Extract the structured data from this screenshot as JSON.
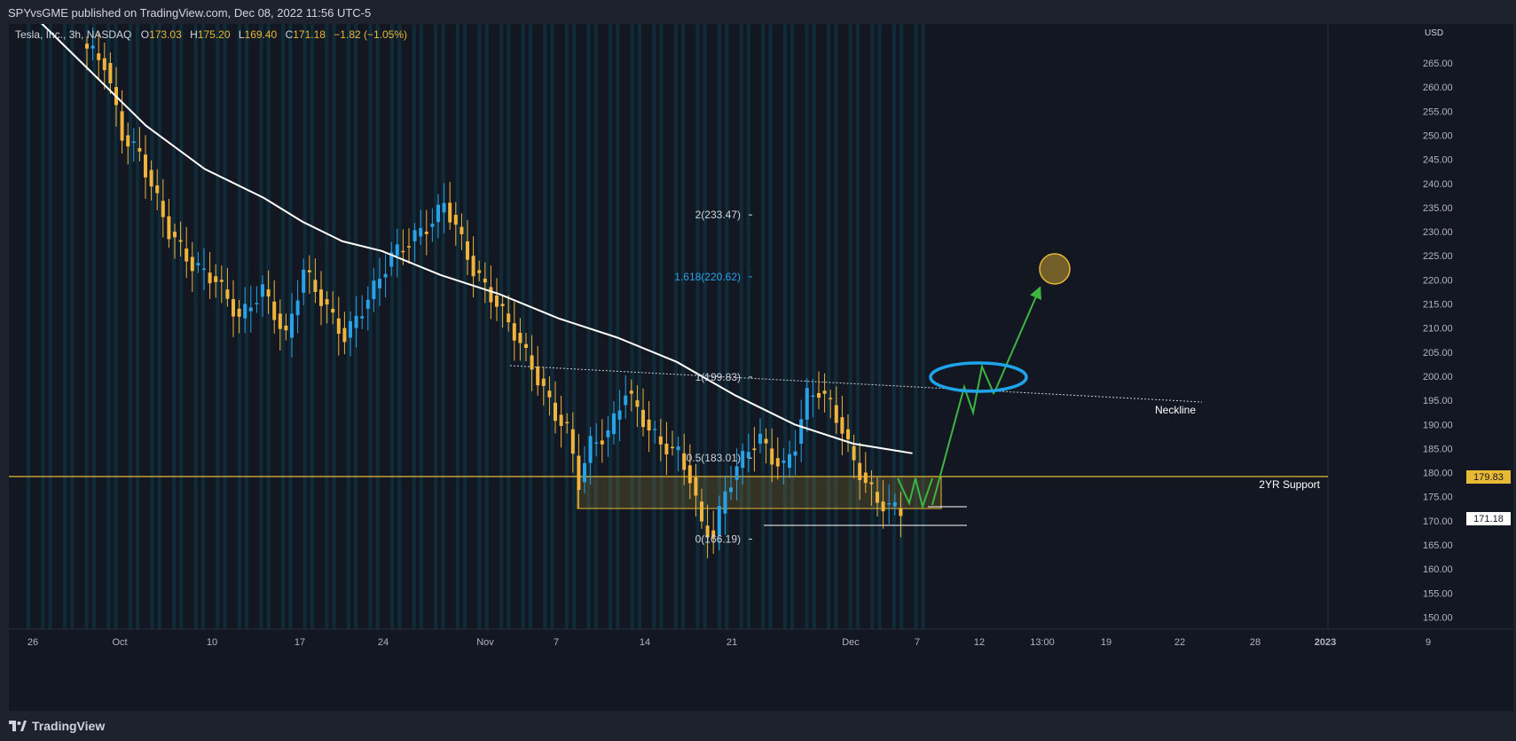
{
  "header": {
    "publish_line": "SPYvsGME published on TradingView.com, Dec 08, 2022 11:56 UTC-5"
  },
  "legend": {
    "symbol": "Tesla, Inc., 3h, NASDAQ",
    "o_label": "O",
    "o_value": "173.03",
    "h_label": "H",
    "h_value": "175.20",
    "l_label": "L",
    "l_value": "169.40",
    "c_label": "C",
    "c_value": "171.18",
    "change": "−1.82 (−1.05%)"
  },
  "footer": {
    "brand": "TradingView"
  },
  "colors": {
    "background": "#131722",
    "up": "#29a1e6",
    "down": "#f0b43c",
    "support": "#e8b935",
    "ma": "#ffffff",
    "projection": "#3cb543",
    "ellipse": "#1ea4e9",
    "fib_ext": "#2b9fe6"
  },
  "chart_data": {
    "type": "candlestick",
    "currency_label": "USD",
    "price_ticks": [
      "265.00",
      "260.00",
      "255.00",
      "250.00",
      "245.00",
      "240.00",
      "235.00",
      "230.00",
      "225.00",
      "220.00",
      "215.00",
      "210.00",
      "205.00",
      "200.00",
      "195.00",
      "190.00",
      "185.00",
      "180.00",
      "175.00",
      "170.00",
      "165.00",
      "160.00",
      "155.00",
      "150.00"
    ],
    "date_ticks": [
      "26",
      "Oct",
      "10",
      "17",
      "24",
      "Nov",
      "7",
      "14",
      "21",
      "Dec",
      "7",
      "12",
      "13:00",
      "19",
      "22",
      "28",
      "2023",
      "9"
    ],
    "ylim": [
      148,
      269
    ],
    "fib_levels": [
      {
        "label": "2(233.47)",
        "price": 233.47,
        "color": "#d1d4dc"
      },
      {
        "label": "1.618(220.62)",
        "price": 220.62,
        "color": "#2b9fe6"
      },
      {
        "label": "1(199.83)",
        "price": 199.83,
        "color": "#d1d4dc"
      },
      {
        "label": "0.5(183.01)",
        "price": 183.01,
        "color": "#d1d4dc"
      },
      {
        "label": "0(166.19)",
        "price": 166.19,
        "color": "#d1d4dc"
      }
    ],
    "support": {
      "label": "2YR Support",
      "price": 179.83,
      "price_label": "179.83"
    },
    "last_price": {
      "price": 171.18,
      "label": "171.18"
    },
    "neckline_label": "Neckline",
    "candle_anchors": [
      [
        0,
        269
      ],
      [
        4,
        265
      ],
      [
        7,
        250
      ],
      [
        10,
        246
      ],
      [
        15,
        230
      ],
      [
        19,
        223
      ],
      [
        23,
        220
      ],
      [
        27,
        212
      ],
      [
        31,
        218
      ],
      [
        35,
        208
      ],
      [
        38,
        222
      ],
      [
        42,
        214
      ],
      [
        45,
        208
      ],
      [
        49,
        216
      ],
      [
        53,
        225
      ],
      [
        57,
        229
      ],
      [
        60,
        232
      ],
      [
        62,
        236
      ],
      [
        64,
        231
      ],
      [
        67,
        222
      ],
      [
        71,
        215
      ],
      [
        74,
        209
      ],
      [
        77,
        202
      ],
      [
        79,
        197
      ],
      [
        81,
        192
      ],
      [
        83,
        189
      ],
      [
        85,
        178
      ],
      [
        87,
        186
      ],
      [
        90,
        188
      ],
      [
        93,
        197
      ],
      [
        95,
        193
      ],
      [
        97,
        189
      ],
      [
        99,
        186
      ],
      [
        102,
        184
      ],
      [
        104,
        179
      ],
      [
        106,
        169
      ],
      [
        108,
        167
      ],
      [
        110,
        176
      ],
      [
        112,
        181
      ],
      [
        114,
        185
      ],
      [
        116,
        187
      ],
      [
        118,
        183
      ],
      [
        120,
        181
      ],
      [
        122,
        186
      ],
      [
        124,
        196
      ],
      [
        126,
        197
      ],
      [
        128,
        194
      ],
      [
        130,
        189
      ],
      [
        132,
        182
      ],
      [
        134,
        178
      ],
      [
        136,
        174
      ],
      [
        138,
        173
      ],
      [
        140,
        172
      ]
    ],
    "moving_average": [
      [
        -6,
        276
      ],
      [
        0,
        264
      ],
      [
        6,
        252
      ],
      [
        12,
        243
      ],
      [
        18,
        237
      ],
      [
        22,
        232
      ],
      [
        26,
        228
      ],
      [
        30,
        226
      ],
      [
        36,
        221
      ],
      [
        42,
        217
      ],
      [
        48,
        212
      ],
      [
        54,
        208
      ],
      [
        60,
        203
      ],
      [
        66,
        196
      ],
      [
        72,
        190
      ],
      [
        78,
        186
      ],
      [
        84,
        184
      ]
    ]
  }
}
